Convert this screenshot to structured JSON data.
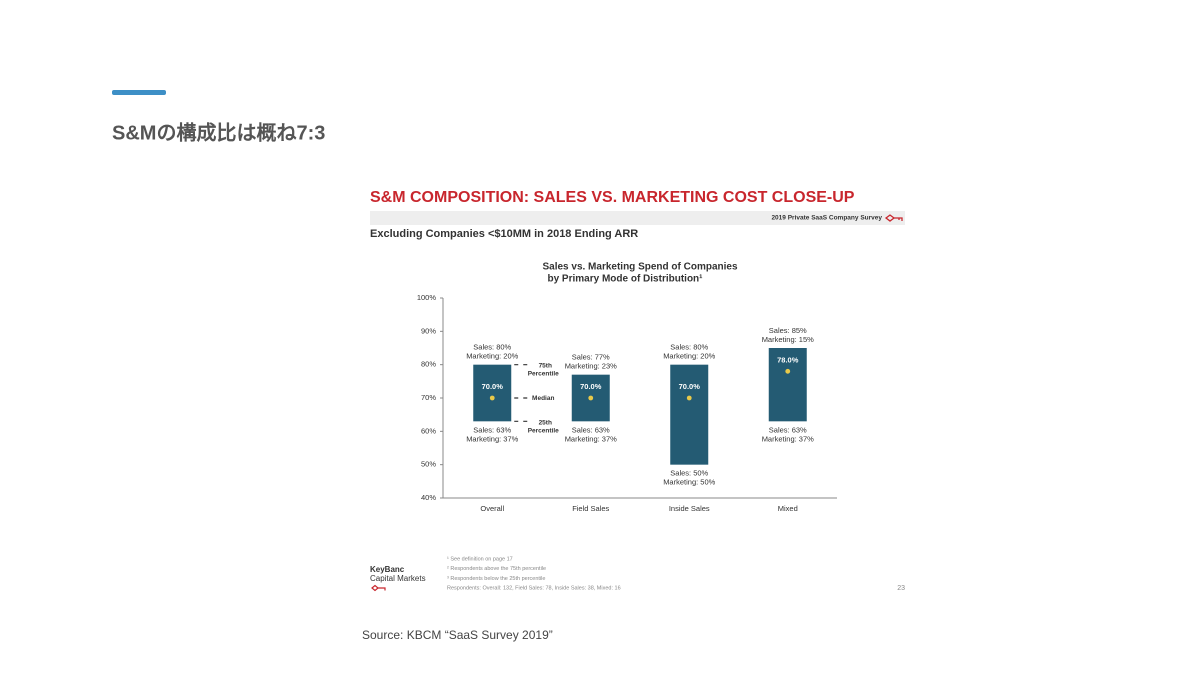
{
  "slide": {
    "title": "S&Mの構成比は概ね7:3",
    "source": "Source: KBCM “SaaS Survey 2019”"
  },
  "report": {
    "header": "S&M COMPOSITION: SALES VS. MARKETING COST CLOSE-UP",
    "survey_tag": "2019 Private SaaS Company Survey",
    "subheader": "Excluding Companies <$10MM in 2018 Ending ARR",
    "footnotes": [
      "¹ See definition on page 17",
      "² Respondents above the 75th percentile",
      "³ Respondents below the 25th percentile",
      "Respondents: Overall: 132, Field Sales: 78, Inside Sales: 38, Mixed: 16"
    ],
    "logo": [
      "KeyBanc",
      "Capital Markets"
    ],
    "page_number": 23
  },
  "chart_data": {
    "type": "floating-bar",
    "title": [
      "Sales vs. Marketing Spend of Companies",
      "by Primary Mode of Distribution¹"
    ],
    "categories": [
      "Overall",
      "Field Sales",
      "Inside Sales",
      "Mixed"
    ],
    "low": [
      63,
      63,
      50,
      63
    ],
    "high": [
      80,
      77,
      80,
      85
    ],
    "median": [
      70,
      70,
      70,
      78
    ],
    "value_labels": [
      "70.0%",
      "70.0%",
      "70.0%",
      "78.0%"
    ],
    "color": "#245b73",
    "median_color": "#e8c94a",
    "top_labels": [
      [
        "Sales: 80%",
        "Marketing: 20%"
      ],
      [
        "Sales: 77%",
        "Marketing: 23%"
      ],
      [
        "Sales: 80%",
        "Marketing: 20%"
      ],
      [
        "Sales: 85%",
        "Marketing: 15%"
      ]
    ],
    "bottom_labels": [
      [
        "Sales: 63%",
        "Marketing: 37%"
      ],
      [
        "Sales: 63%",
        "Marketing: 37%"
      ],
      [
        "Sales: 50%",
        "Marketing: 50%"
      ],
      [
        "Sales: 63%",
        "Marketing: 37%"
      ]
    ],
    "percentile_labels": [
      "75th Percentile",
      "Median",
      "25th Percentile"
    ],
    "ylim": [
      40,
      100
    ],
    "yticks": [
      {
        "value": 40,
        "label": "40%"
      },
      {
        "value": 50,
        "label": "50%"
      },
      {
        "value": 60,
        "label": "60%"
      },
      {
        "value": 70,
        "label": "70%"
      },
      {
        "value": 80,
        "label": "80%"
      },
      {
        "value": 90,
        "label": "90%"
      },
      {
        "value": 100,
        "label": "100%"
      }
    ]
  }
}
